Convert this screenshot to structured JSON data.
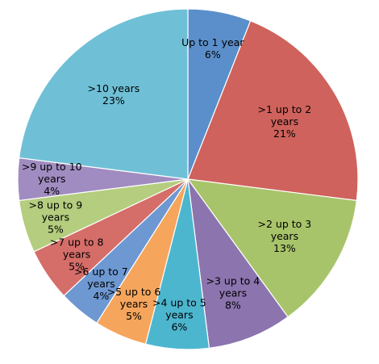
{
  "chart_data": {
    "type": "pie",
    "legend": "none",
    "slices": [
      {
        "label": [
          "Up to 1 year"
        ],
        "pct_label": "6%",
        "value": 6,
        "color": "#5B8FCB"
      },
      {
        "label": [
          ">1 up to 2",
          "years"
        ],
        "pct_label": "21%",
        "value": 21,
        "color": "#CF625C"
      },
      {
        "label": [
          ">2 up to 3",
          "years"
        ],
        "pct_label": "13%",
        "value": 13,
        "color": "#A8C46A"
      },
      {
        "label": [
          ">3 up to 4",
          "years"
        ],
        "pct_label": "8%",
        "value": 8,
        "color": "#8C74AE"
      },
      {
        "label": [
          ">4 up to 5",
          "years"
        ],
        "pct_label": "6%",
        "value": 6,
        "color": "#4DB6CF"
      },
      {
        "label": [
          ">5 up to 6",
          "years"
        ],
        "pct_label": "5%",
        "value": 5,
        "color": "#F5A55C"
      },
      {
        "label": [
          ">6 up to 7",
          "years"
        ],
        "pct_label": "4%",
        "value": 4,
        "color": "#6D98D2"
      },
      {
        "label": [
          ">7 up to 8",
          "years"
        ],
        "pct_label": "5%",
        "value": 5,
        "color": "#D56D69"
      },
      {
        "label": [
          ">8 up to 9",
          "years"
        ],
        "pct_label": "5%",
        "value": 5,
        "color": "#B4CD7E"
      },
      {
        "label": [
          ">9 up to 10",
          "years"
        ],
        "pct_label": "4%",
        "value": 4,
        "color": "#A08CC0"
      },
      {
        "label": [
          ">10 years"
        ],
        "pct_label": "23%",
        "value": 23,
        "color": "#6FC0D6"
      }
    ]
  }
}
